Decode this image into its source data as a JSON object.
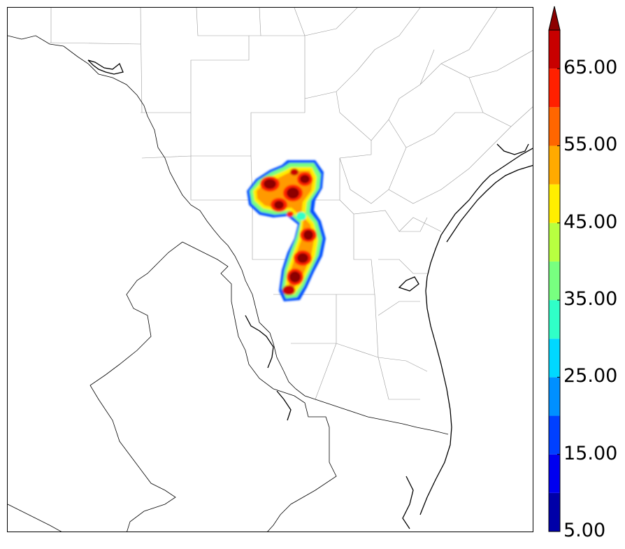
{
  "colorbar": {
    "levels": [
      5,
      10,
      15,
      20,
      25,
      30,
      35,
      40,
      45,
      50,
      55,
      60,
      65,
      70
    ],
    "colors": [
      "#0000a8",
      "#0000f0",
      "#0040ff",
      "#0090ff",
      "#00d8ff",
      "#30ffc8",
      "#78ff80",
      "#b8ff40",
      "#ffee00",
      "#ffaa00",
      "#ff6600",
      "#ff2000",
      "#c80000",
      "#8c0000"
    ],
    "extend": "max",
    "tick_labels": [
      "5.00",
      "15.00",
      "25.00",
      "35.00",
      "45.00",
      "55.00",
      "65.00"
    ]
  },
  "map": {
    "background": "#ffffff",
    "boundary_color": "#000000",
    "county_line_color": "#999999"
  }
}
